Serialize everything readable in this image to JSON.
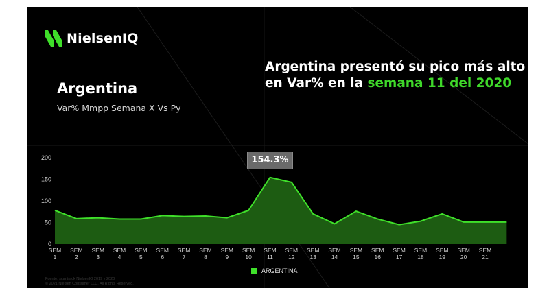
{
  "brand": {
    "logo_text": "NielsenIQ",
    "accent_color": "#3fd82a"
  },
  "header": {
    "country": "Argentina",
    "subtitle": "Var% Mmpp Semana X Vs Py",
    "headline_white": "Argentina presentó su pico más alto en Var% en la ",
    "headline_green": "semana 11 del 2020"
  },
  "peak_label": "154.3%",
  "legend": {
    "label": "ARGENTINA",
    "color": "#3fe02a"
  },
  "source": {
    "line1": "Fuente: scantrack NielsenIQ 2019 y 2020",
    "line2": "© 2021 Nielsen Consumer LLC. All Rights Reserved."
  },
  "chart_data": {
    "type": "area",
    "title": "Var% Mmpp Semana X Vs Py",
    "xlabel": "",
    "ylabel": "",
    "ylim": [
      0,
      200
    ],
    "yticks": [
      0,
      50,
      100,
      150,
      200
    ],
    "grid": false,
    "legend_position": "bottom",
    "categories": [
      "SEM 1",
      "SEM 2",
      "SEM 3",
      "SEM 4",
      "SEM 5",
      "SEM 6",
      "SEM 7",
      "SEM 8",
      "SEM 9",
      "SEM 10",
      "SEM 11",
      "SEM 12",
      "SEM 13",
      "SEM 14",
      "SEM 15",
      "SEM 16",
      "SEM 17",
      "SEM 18",
      "SEM 19",
      "SEM 20",
      "SEM 21",
      ""
    ],
    "series": [
      {
        "name": "ARGENTINA",
        "color": "#3fe02a",
        "values": [
          78,
          59,
          61,
          58,
          58,
          66,
          64,
          65,
          61,
          78,
          154.3,
          143,
          70,
          47,
          76,
          58,
          45,
          53,
          70,
          51,
          51,
          51
        ]
      }
    ],
    "annotations": [
      {
        "category": "SEM 11",
        "text": "154.3%"
      }
    ]
  }
}
